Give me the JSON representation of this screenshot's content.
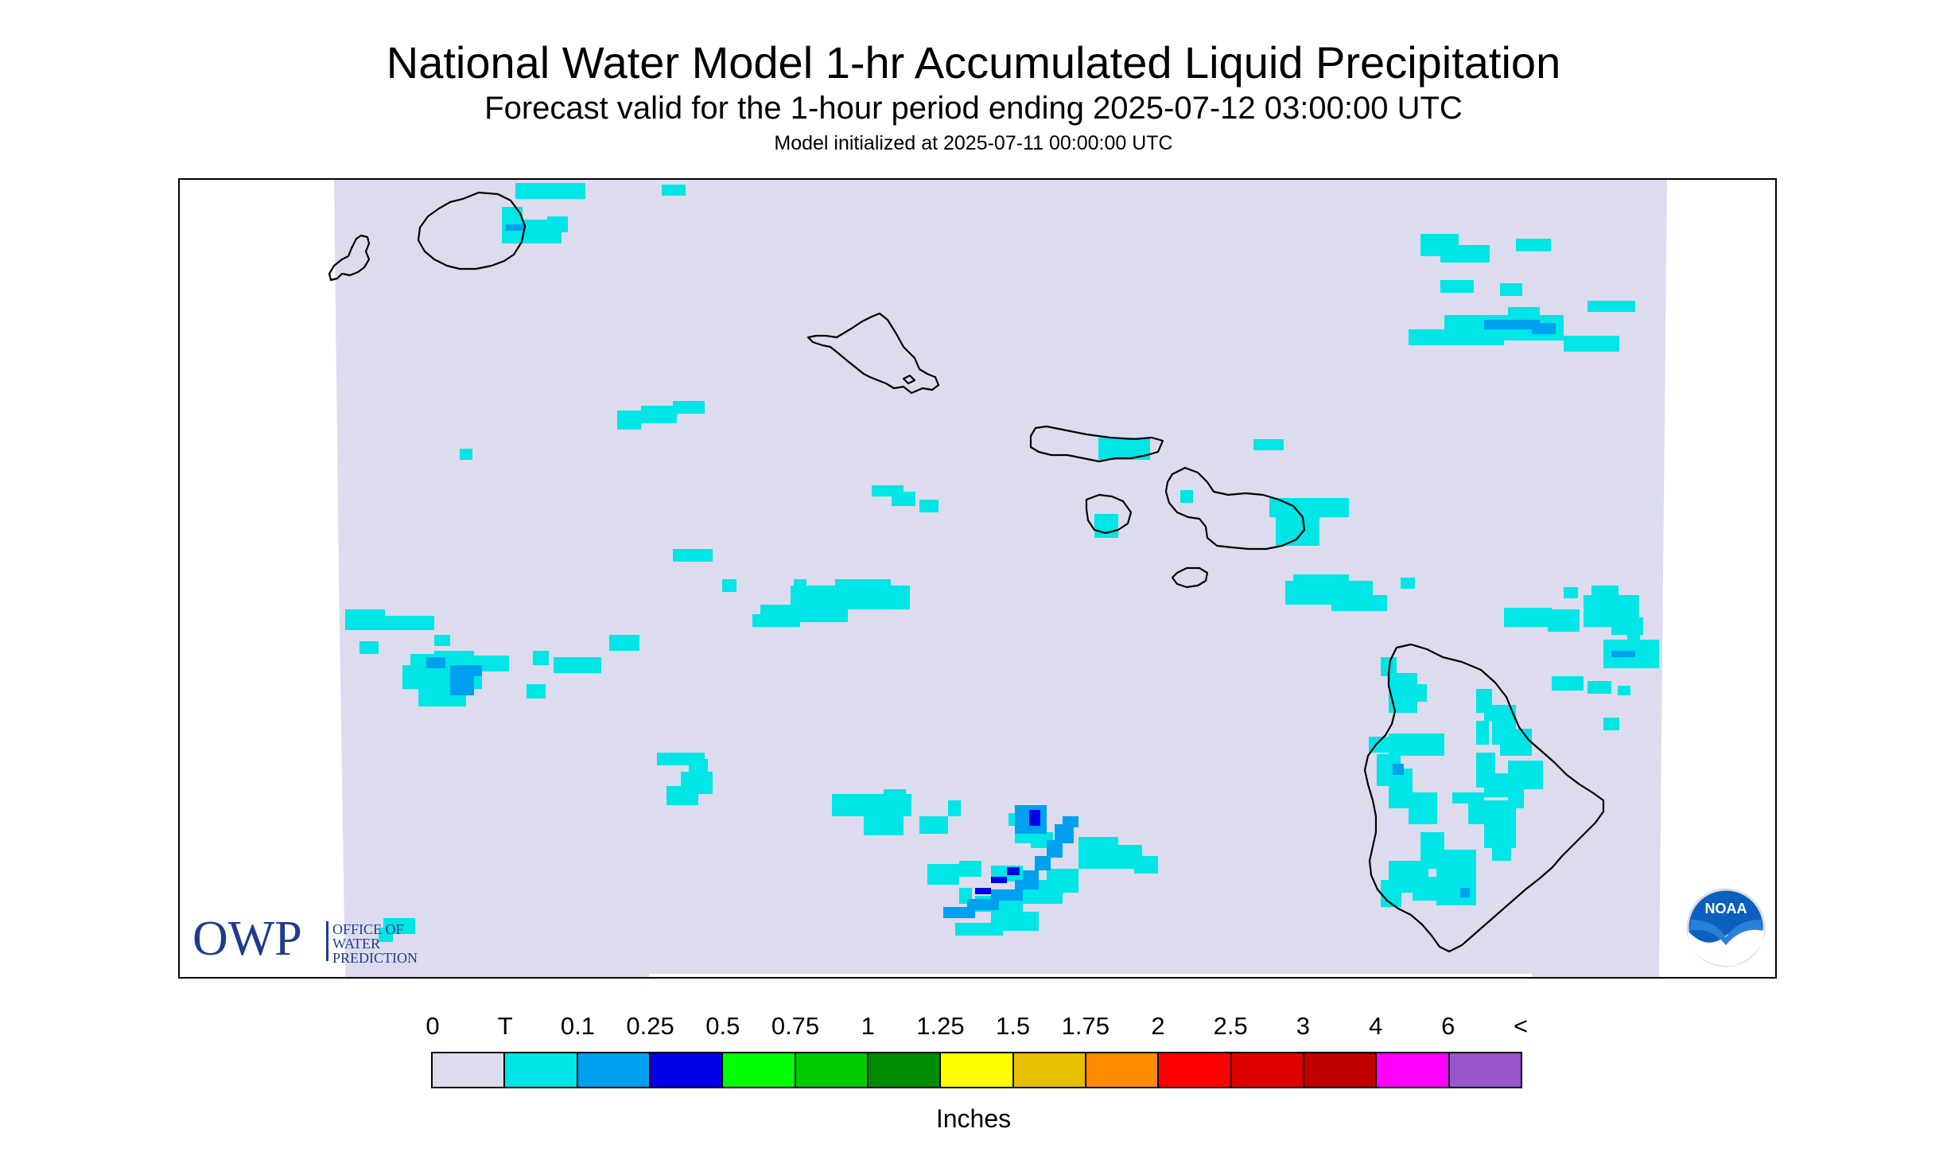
{
  "title": "National Water Model 1-hr Accumulated Liquid Precipitation",
  "subtitle": "Forecast valid for the 1-hour period ending 2025-07-12 03:00:00 UTC",
  "init_text": "Model initialized at 2025-07-11 00:00:00 UTC",
  "owp_logo": {
    "abbr": "OWP",
    "line1": "OFFICE OF",
    "line2": "WATER",
    "line3": "PREDICTION"
  },
  "noaa_logo": {
    "text": "NOAA"
  },
  "legend": {
    "units": "Inches",
    "labels": [
      "0",
      "T",
      "0.1",
      "0.25",
      "0.5",
      "0.75",
      "1",
      "1.25",
      "1.5",
      "1.75",
      "2",
      "2.5",
      "3",
      "4",
      "6",
      "<"
    ],
    "colors": [
      "#dcdcee",
      "#00e5e5",
      "#00a0f0",
      "#0000e6",
      "#00ff00",
      "#00cc00",
      "#008c00",
      "#ffff00",
      "#e6c000",
      "#ff8c00",
      "#ff0000",
      "#e00000",
      "#c00000",
      "#ff00ff",
      "#9955cc"
    ]
  },
  "colors": {
    "domain_fill": "#dcdcee",
    "trace": "#00e5e5",
    "light_blue": "#00a0f0",
    "dark_blue": "#0000e6",
    "owp_blue": "#1f3c8c",
    "noaa_blue": "#0a5fbf"
  }
}
